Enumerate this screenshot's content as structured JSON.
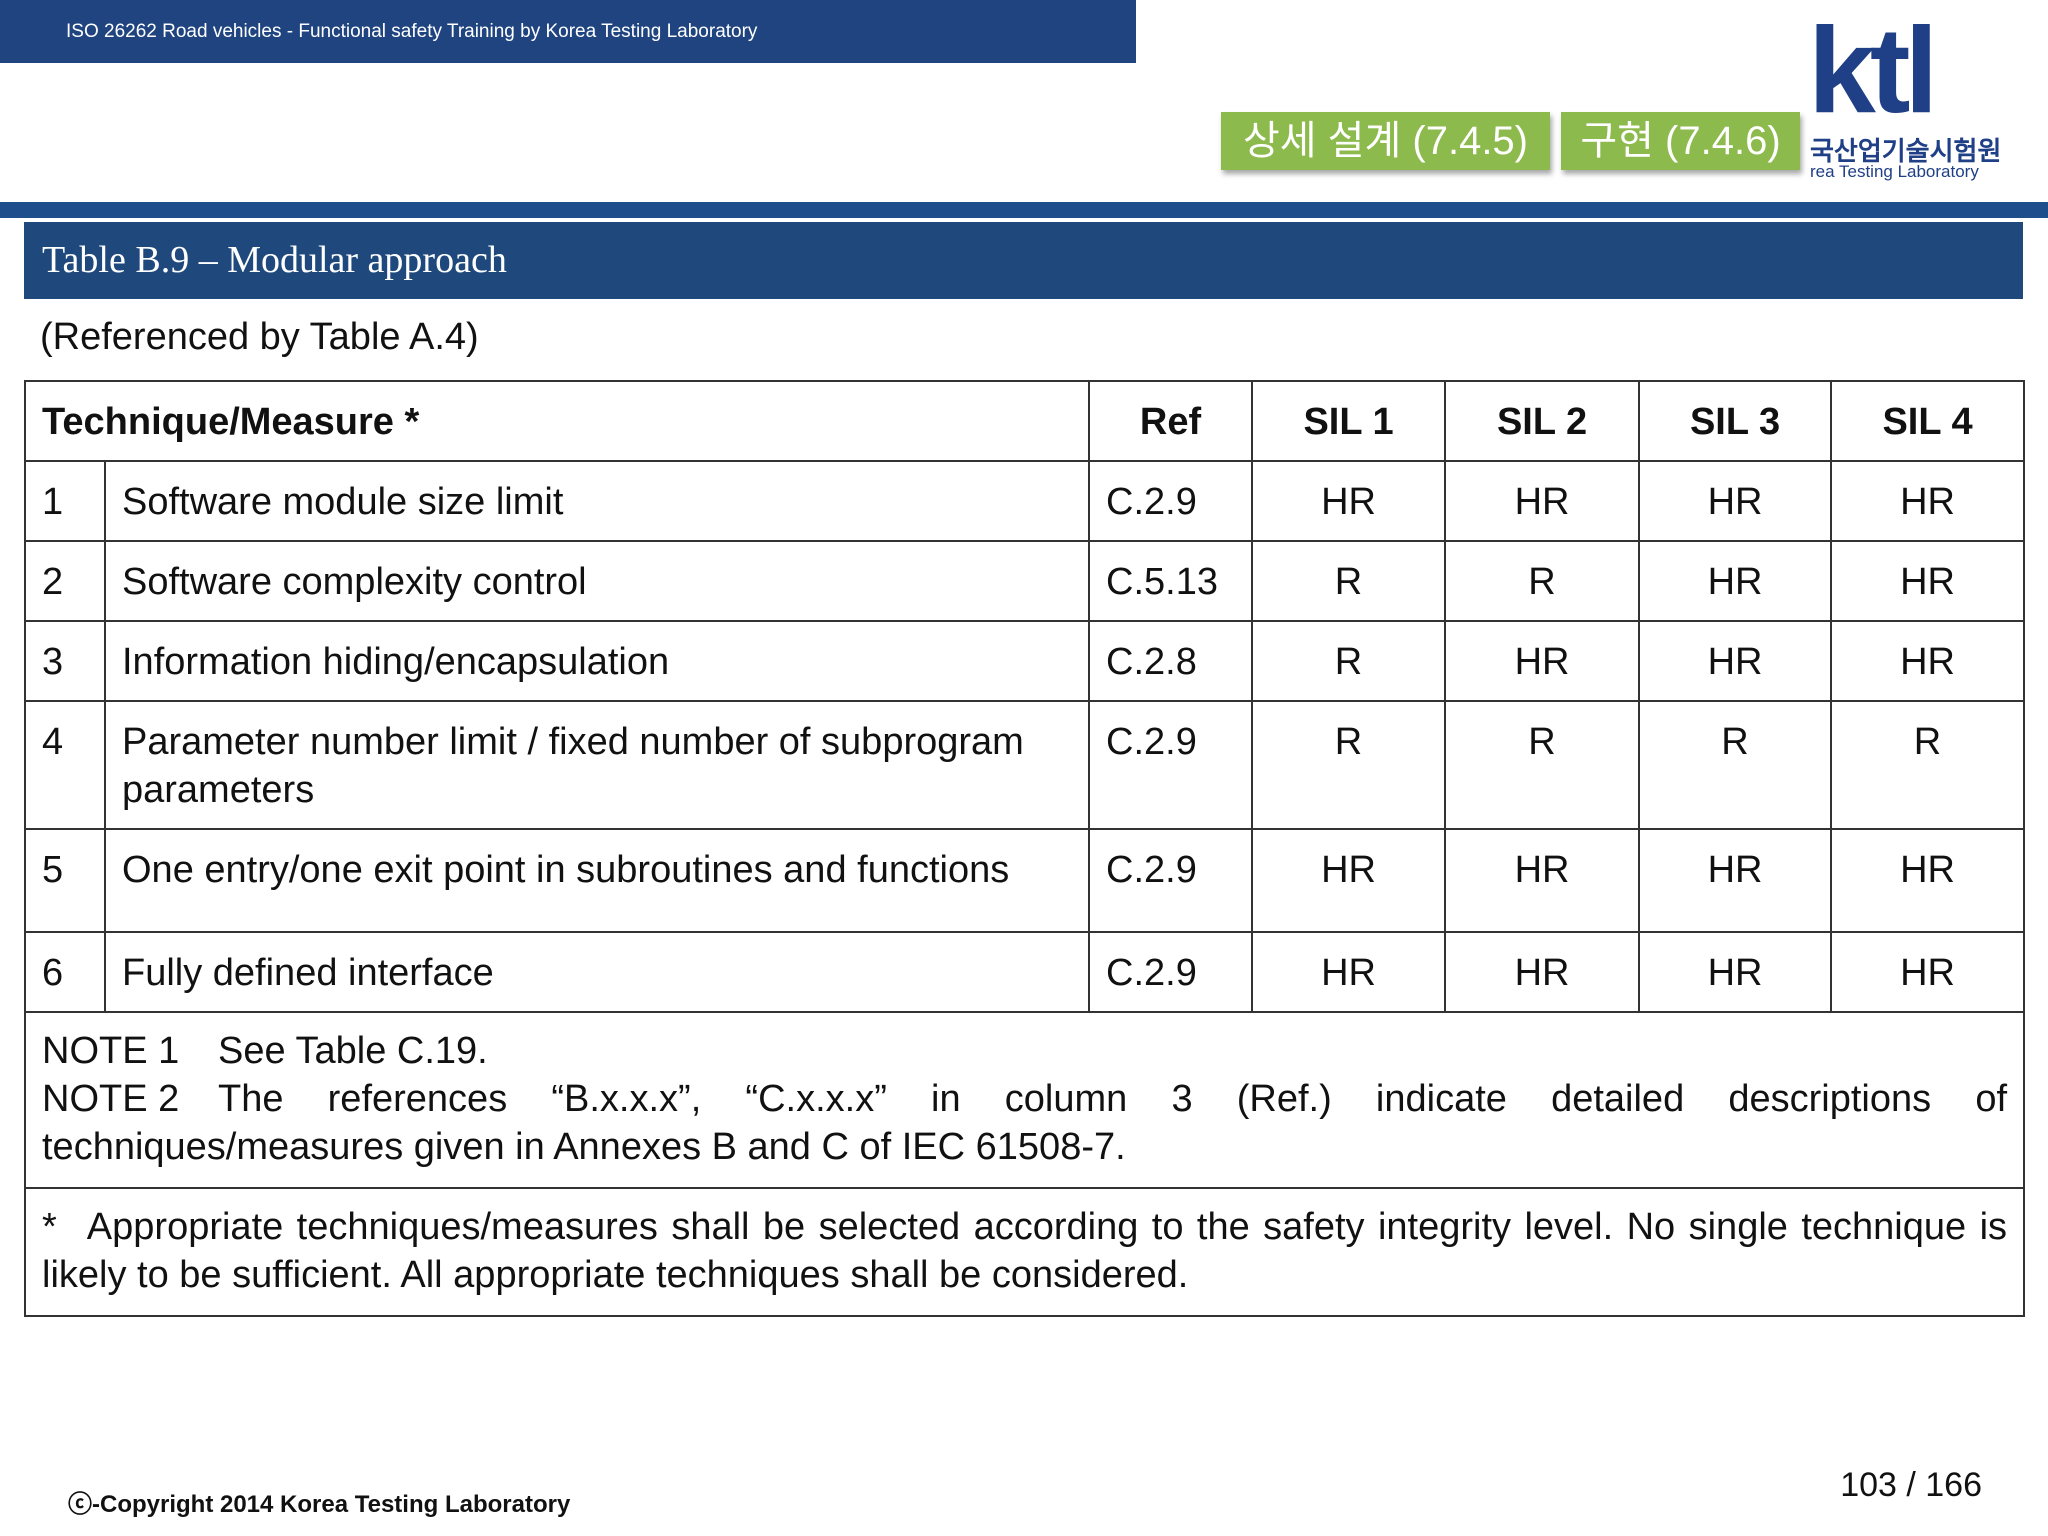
{
  "header": {
    "banner": "ISO 26262 Road vehicles - Functional safety Training by Korea Testing Laboratory",
    "tabs": [
      "상세 설계 (7.4.5)",
      "구현 (7.4.6)"
    ],
    "logo": {
      "mark": "ktl",
      "korean": "국산업기술시험원",
      "english": "rea Testing Laboratory"
    }
  },
  "table": {
    "title": "Table B.9 – Modular approach",
    "subtitle": "(Referenced by Table A.4)",
    "columns": [
      "Technique/Measure *",
      "Ref",
      "SIL 1",
      "SIL 2",
      "SIL 3",
      "SIL 4"
    ],
    "rows": [
      [
        "1",
        "Software module size limit",
        "C.2.9",
        "HR",
        "HR",
        "HR",
        "HR"
      ],
      [
        "2",
        "Software complexity control",
        "C.5.13",
        "R",
        "R",
        "HR",
        "HR"
      ],
      [
        "3",
        "Information hiding/encapsulation",
        "C.2.8",
        "R",
        "HR",
        "HR",
        "HR"
      ],
      [
        "4",
        "Parameter number limit / fixed number of subprogram parameters",
        "C.2.9",
        "R",
        "R",
        "R",
        "R"
      ],
      [
        "5",
        "One entry/one exit point in subroutines and functions",
        "C.2.9",
        "HR",
        "HR",
        "HR",
        "HR"
      ],
      [
        "6",
        "Fully defined interface",
        "C.2.9",
        "HR",
        "HR",
        "HR",
        "HR"
      ]
    ],
    "notes": [
      {
        "label": "NOTE 1",
        "text": "See Table C.19."
      },
      {
        "label": "NOTE 2",
        "text": "The references “B.x.x.x”, “C.x.x.x” in column 3 (Ref.) indicate detailed descriptions of techniques/measures given in Annexes B and C of IEC 61508-7."
      }
    ],
    "footnote": {
      "mark": "*",
      "text": "Appropriate techniques/measures shall be selected according to the safety integrity level. No single technique is likely to be sufficient. All appropriate techniques shall be considered."
    }
  },
  "footer": {
    "copyright": "ⓒ-Copyright 2014 Korea Testing Laboratory",
    "page": "103 / 166"
  }
}
